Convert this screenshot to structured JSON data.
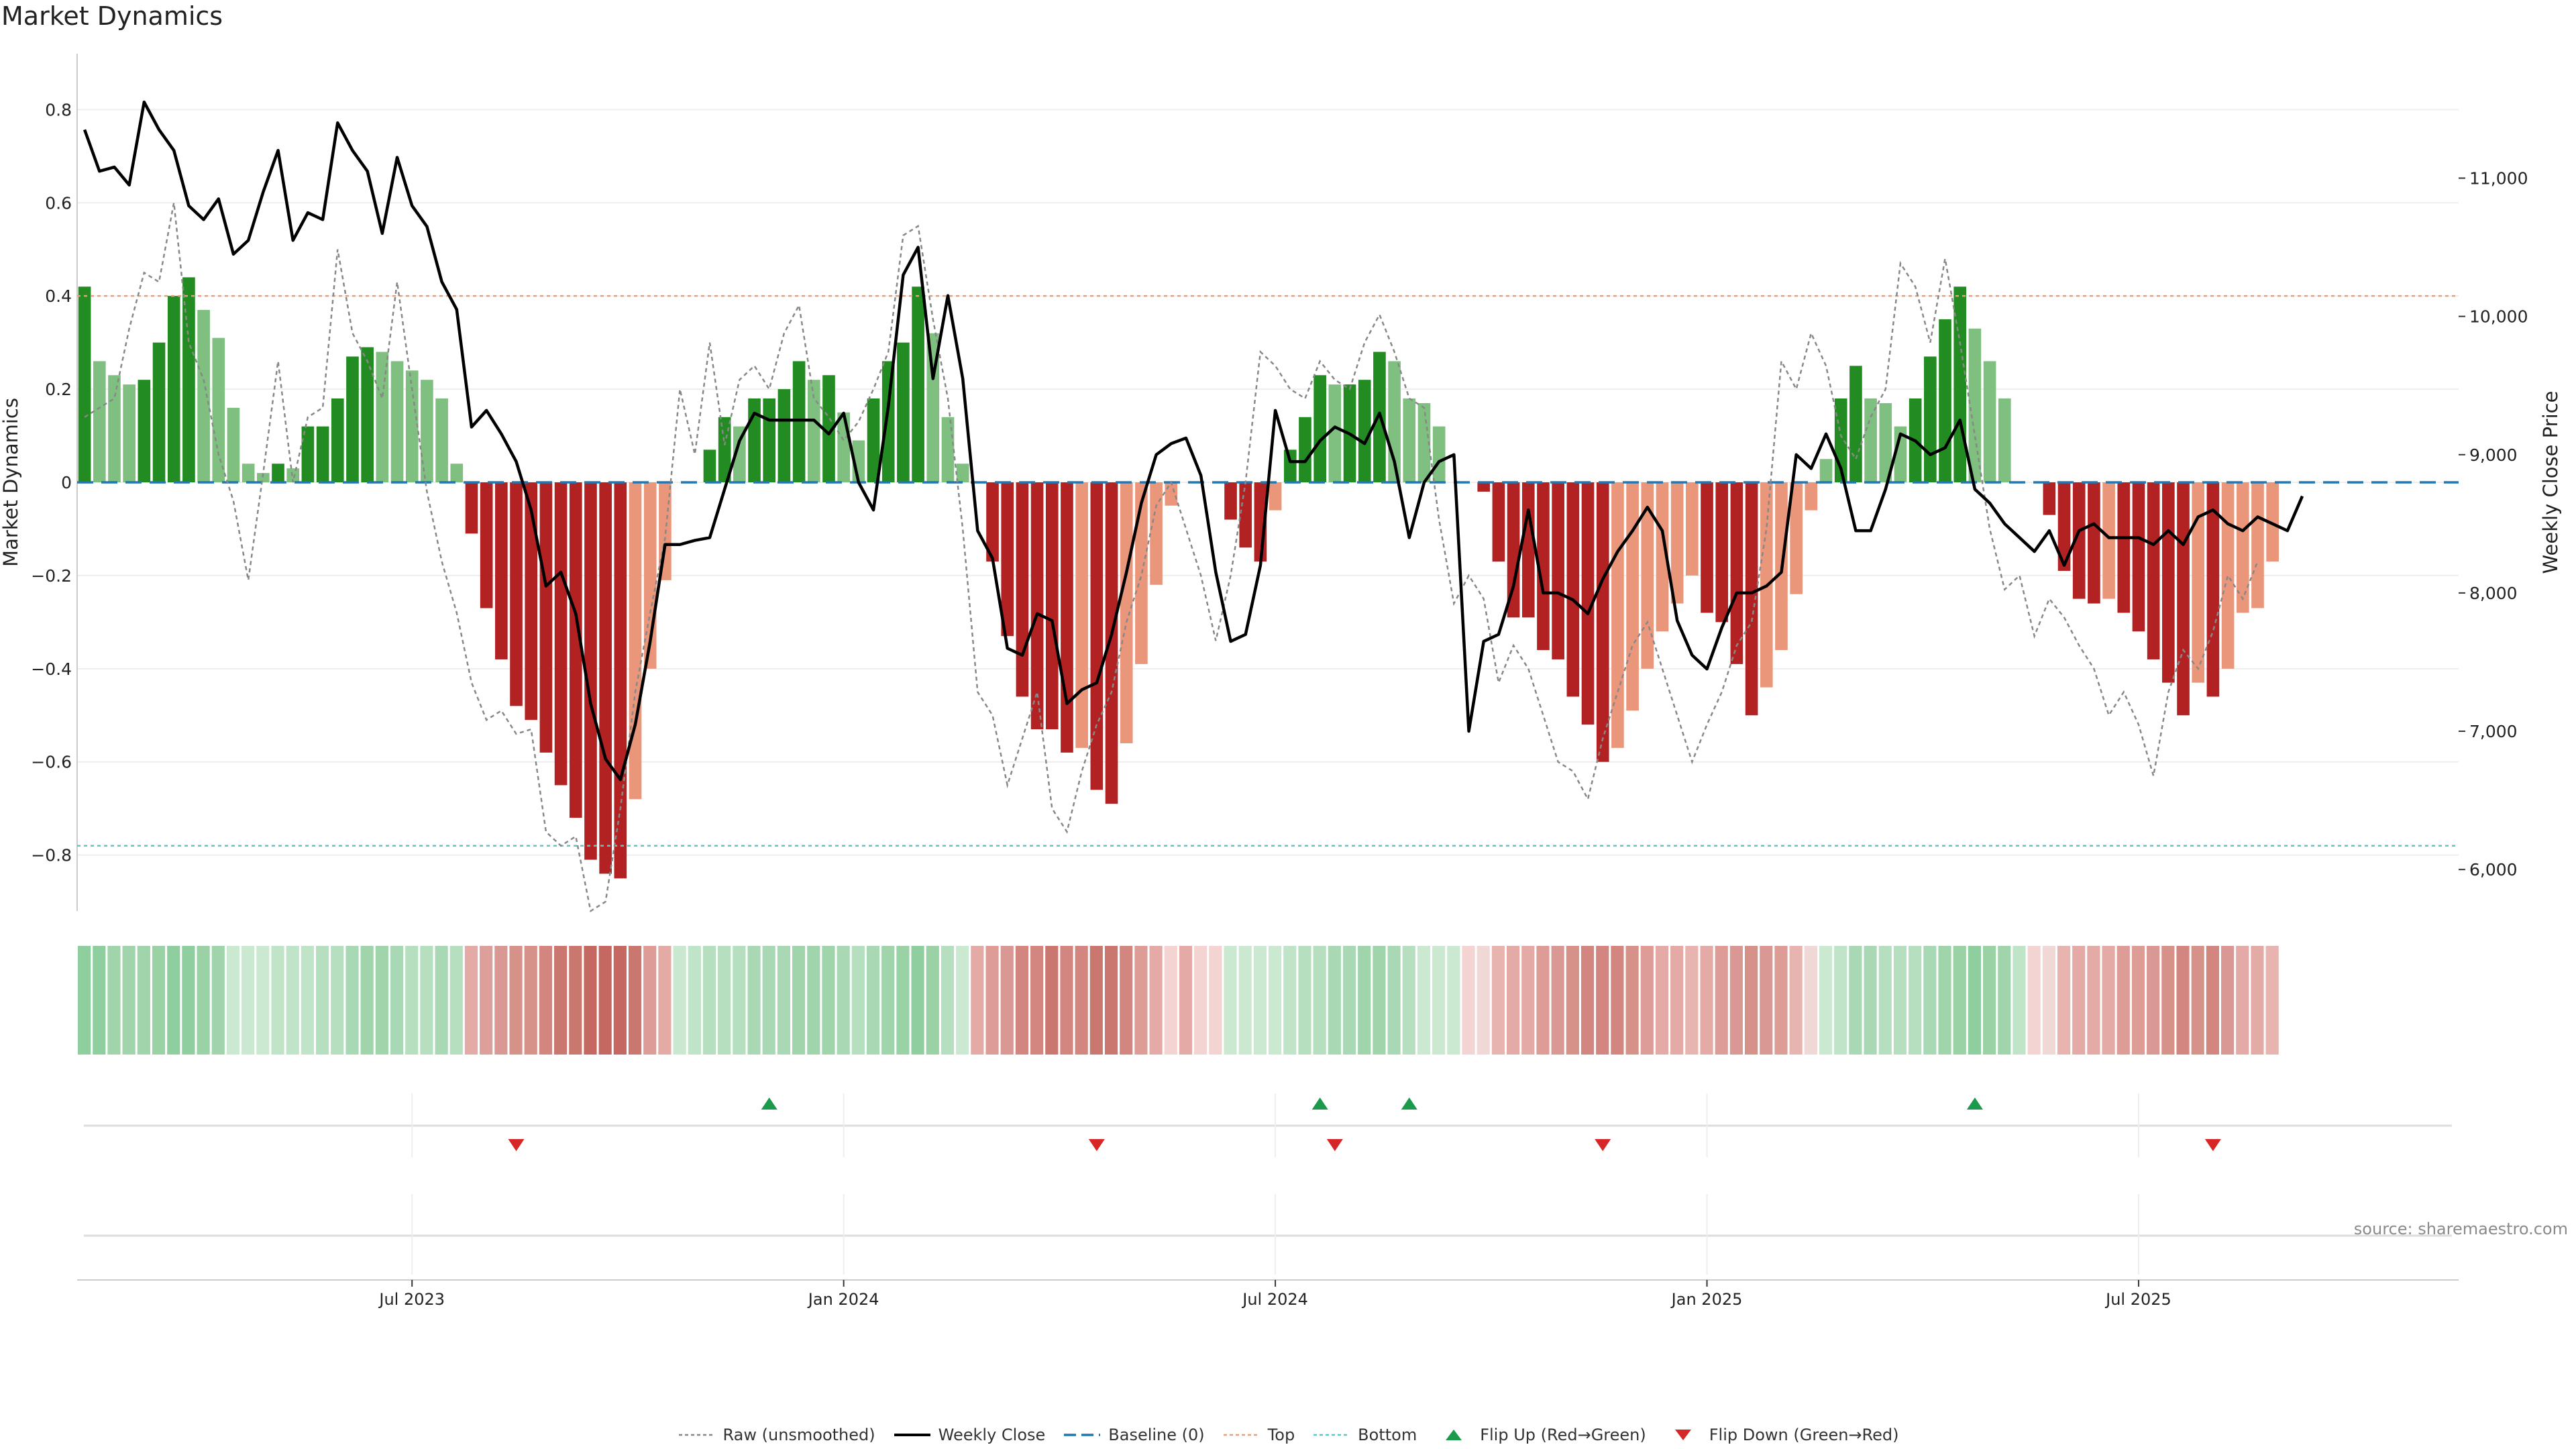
{
  "title": "Market Dynamics",
  "source": "source: sharemaestro.com",
  "colors": {
    "bar_pos_strong": "#228b22",
    "bar_pos_weak": "#7fbf7f",
    "bar_neg_strong": "#b22222",
    "bar_neg_weak": "#e9967a",
    "raw_line": "#888888",
    "close_line": "#000000",
    "baseline": "#1f77b4",
    "top_line": "#e8a07a",
    "bottom_line": "#5bc8c8",
    "flip_up": "#1a9a4a",
    "flip_down": "#d62728",
    "grid": "#eeeeee"
  },
  "legend": [
    {
      "label": "Raw (unsmoothed)",
      "kind": "raw"
    },
    {
      "label": "Weekly Close",
      "kind": "close"
    },
    {
      "label": "Baseline (0)",
      "kind": "baseline"
    },
    {
      "label": "Top",
      "kind": "top"
    },
    {
      "label": "Bottom",
      "kind": "bottom"
    },
    {
      "label": "Flip Up (Red→Green)",
      "kind": "up"
    },
    {
      "label": "Flip Down (Green→Red)",
      "kind": "down"
    }
  ],
  "chart_data": {
    "type": "bar",
    "title": "Market Dynamics",
    "ylabel": "Market Dynamics",
    "y2label": "Weekly Close Price",
    "ylim": [
      -0.92,
      0.92
    ],
    "y_ticks": [
      -0.8,
      -0.6,
      -0.4,
      -0.2,
      0,
      0.2,
      0.4,
      0.6,
      0.8
    ],
    "y_tick_labels": [
      "−0.8",
      "−0.6",
      "−0.4",
      "−0.2",
      "0",
      "0.2",
      "0.4",
      "0.6",
      "0.8"
    ],
    "y2lim": [
      5700,
      11900
    ],
    "y2_ticks": [
      6000,
      7000,
      8000,
      9000,
      10000,
      11000
    ],
    "y2_tick_labels": [
      "6,000",
      "7,000",
      "8,000",
      "9,000",
      "10,000",
      "11,000"
    ],
    "x_tick_weeks": [
      22,
      51,
      80,
      109,
      138
    ],
    "x_tick_labels": [
      "Jul 2023",
      "Jan 2024",
      "Jul 2024",
      "Jan 2025",
      "Jul 2025"
    ],
    "top_threshold": 0.4,
    "bottom_threshold": -0.78,
    "baseline": 0,
    "weeks": 160,
    "series": [
      {
        "name": "Market Dynamics",
        "values": [
          0.42,
          0.26,
          0.23,
          0.21,
          0.22,
          0.3,
          0.4,
          0.44,
          0.37,
          0.31,
          0.16,
          0.04,
          0.02,
          0.04,
          0.03,
          0.12,
          0.12,
          0.18,
          0.27,
          0.29,
          0.28,
          0.26,
          0.24,
          0.22,
          0.18,
          0.04,
          -0.11,
          -0.27,
          -0.38,
          -0.48,
          -0.51,
          -0.58,
          -0.65,
          -0.72,
          -0.81,
          -0.84,
          -0.85,
          -0.68,
          -0.4,
          -0.21,
          0,
          0,
          0.07,
          0.14,
          0.12,
          0.18,
          0.18,
          0.2,
          0.26,
          0.22,
          0.23,
          0.15,
          0.09,
          0.18,
          0.26,
          0.3,
          0.42,
          0.32,
          0.14,
          0.04,
          0,
          -0.17,
          -0.33,
          -0.46,
          -0.53,
          -0.53,
          -0.58,
          -0.57,
          -0.66,
          -0.69,
          -0.56,
          -0.39,
          -0.22,
          -0.05,
          0,
          0,
          0,
          -0.08,
          -0.14,
          -0.17,
          -0.06,
          0.07,
          0.14,
          0.23,
          0.21,
          0.21,
          0.22,
          0.28,
          0.26,
          0.18,
          0.17,
          0.12,
          0,
          0,
          -0.02,
          -0.17,
          -0.29,
          -0.29,
          -0.36,
          -0.38,
          -0.46,
          -0.52,
          -0.6,
          -0.57,
          -0.49,
          -0.4,
          -0.32,
          -0.26,
          -0.2,
          -0.28,
          -0.3,
          -0.39,
          -0.5,
          -0.44,
          -0.36,
          -0.24,
          -0.06,
          0.05,
          0.18,
          0.25,
          0.18,
          0.17,
          0.12,
          0.18,
          0.27,
          0.35,
          0.42,
          0.33,
          0.26,
          0.18,
          0,
          0,
          -0.07,
          -0.19,
          -0.25,
          -0.26,
          -0.25,
          -0.28,
          -0.32,
          -0.38,
          -0.43,
          -0.5,
          -0.43,
          -0.46,
          -0.4,
          -0.28,
          -0.27,
          -0.17
        ]
      },
      {
        "name": "Raw (unsmoothed)",
        "values": [
          0.14,
          0.16,
          0.18,
          0.33,
          0.45,
          0.43,
          0.6,
          0.3,
          0.22,
          0.06,
          -0.04,
          -0.21,
          0.02,
          0.26,
          0.0,
          0.14,
          0.16,
          0.5,
          0.32,
          0.26,
          0.18,
          0.43,
          0.2,
          -0.02,
          -0.17,
          -0.28,
          -0.43,
          -0.51,
          -0.49,
          -0.54,
          -0.53,
          -0.75,
          -0.78,
          -0.76,
          -0.92,
          -0.9,
          -0.7,
          -0.45,
          -0.28,
          -0.12,
          0.2,
          0.06,
          0.3,
          0.08,
          0.22,
          0.25,
          0.2,
          0.32,
          0.38,
          0.18,
          0.14,
          0.09,
          0.13,
          0.2,
          0.28,
          0.53,
          0.55,
          0.35,
          0.18,
          -0.1,
          -0.45,
          -0.5,
          -0.65,
          -0.55,
          -0.45,
          -0.7,
          -0.75,
          -0.62,
          -0.52,
          -0.45,
          -0.3,
          -0.2,
          -0.05,
          0.0,
          -0.1,
          -0.2,
          -0.34,
          -0.2,
          0.0,
          0.28,
          0.25,
          0.2,
          0.18,
          0.26,
          0.22,
          0.2,
          0.3,
          0.36,
          0.28,
          0.18,
          0.16,
          -0.08,
          -0.26,
          -0.2,
          -0.25,
          -0.43,
          -0.35,
          -0.4,
          -0.5,
          -0.6,
          -0.62,
          -0.68,
          -0.55,
          -0.45,
          -0.35,
          -0.3,
          -0.4,
          -0.5,
          -0.6,
          -0.52,
          -0.45,
          -0.35,
          -0.3,
          -0.1,
          0.26,
          0.2,
          0.32,
          0.25,
          0.1,
          0.05,
          0.14,
          0.2,
          0.47,
          0.42,
          0.3,
          0.48,
          0.3,
          0.1,
          -0.1,
          -0.23,
          -0.2,
          -0.33,
          -0.25,
          -0.29,
          -0.35,
          -0.4,
          -0.5,
          -0.45,
          -0.52,
          -0.63,
          -0.45,
          -0.36,
          -0.4,
          -0.32,
          -0.2,
          -0.25,
          -0.17
        ]
      },
      {
        "name": "Weekly Close",
        "values": [
          11350,
          11050,
          11080,
          10950,
          11550,
          11350,
          11200,
          10800,
          10700,
          10850,
          10450,
          10550,
          10900,
          11200,
          10550,
          10750,
          10700,
          11400,
          11200,
          11050,
          10600,
          11150,
          10800,
          10650,
          10250,
          10050,
          9200,
          9320,
          9150,
          8950,
          8600,
          8050,
          8150,
          7850,
          7200,
          6800,
          6650,
          7050,
          7650,
          8350,
          8350,
          8380,
          8400,
          8750,
          9100,
          9300,
          9250,
          9250,
          9250,
          9250,
          9150,
          9300,
          8800,
          8600,
          9350,
          10300,
          10500,
          9550,
          10150,
          9550,
          8450,
          8250,
          7600,
          7550,
          7850,
          7800,
          7200,
          7300,
          7350,
          7700,
          8150,
          8650,
          9000,
          9080,
          9120,
          8850,
          8150,
          7650,
          7700,
          8200,
          9320,
          8950,
          8950,
          9100,
          9200,
          9150,
          9080,
          9300,
          8950,
          8400,
          8800,
          8950,
          9000,
          7000,
          7650,
          7700,
          8050,
          8600,
          8000,
          8000,
          7950,
          7850,
          8100,
          8300,
          8450,
          8620,
          8450,
          7800,
          7550,
          7450,
          7750,
          8000,
          8000,
          8050,
          8150,
          9000,
          8900,
          9150,
          8900,
          8450,
          8450,
          8750,
          9150,
          9100,
          9000,
          9050,
          9250,
          8750,
          8650,
          8500,
          8400,
          8300,
          8450,
          8200,
          8450,
          8500,
          8400,
          8400,
          8400,
          8350,
          8450,
          8350,
          8550,
          8600,
          8500,
          8450,
          8550,
          8500,
          8450,
          8700
        ]
      }
    ],
    "strip_colors": [
      "#8fcf9f",
      "#8fcf9f",
      "#a0d4ab",
      "#a0d4ab",
      "#a0d4ab",
      "#9ad2a6",
      "#8fcf9f",
      "#8fcf9f",
      "#9ad2a6",
      "#a0d4ab",
      "#cbe9d1",
      "#cbe9d1",
      "#cbe9d1",
      "#bfe4c7",
      "#bfe4c7",
      "#bfe4c7",
      "#b5dfbf",
      "#b5dfbf",
      "#a9d9b4",
      "#a0d4ab",
      "#a0d4ab",
      "#a9d9b4",
      "#b5dfbf",
      "#b5dfbf",
      "#a9d9b4",
      "#b5dfbf",
      "#e3aaa6",
      "#dc9f9a",
      "#d99893",
      "#d69189",
      "#d69189",
      "#d2867f",
      "#ca7770",
      "#ca7770",
      "#c46861",
      "#c46861",
      "#c46861",
      "#ca7770",
      "#de9c96",
      "#e3aaa6",
      "#c9e8cf",
      "#bfe4c7",
      "#b5dfbf",
      "#b5dfbf",
      "#b5dfbf",
      "#a9d9b4",
      "#a9d9b4",
      "#a9d9b4",
      "#a0d4ab",
      "#a0d4ab",
      "#a0d4ab",
      "#a9d9b4",
      "#b5dfbf",
      "#a9d9b4",
      "#a0d4ab",
      "#9ad2a6",
      "#8fcf9f",
      "#9ad2a6",
      "#b5dfbf",
      "#cbe9d1",
      "#e3aaa6",
      "#de9c96",
      "#d99893",
      "#d2867f",
      "#d2867f",
      "#ca7770",
      "#d2867f",
      "#d2867f",
      "#ca7770",
      "#ca7770",
      "#d2867f",
      "#de9c96",
      "#e3aaa6",
      "#f3d4d2",
      "#e3aaa6",
      "#f3d4d2",
      "#f3d4d2",
      "#cbe9d1",
      "#cbe9d1",
      "#cbe9d1",
      "#cbe9d1",
      "#bfe4c7",
      "#b5dfbf",
      "#b5dfbf",
      "#a9d9b4",
      "#a9d9b4",
      "#a0d4ab",
      "#a0d4ab",
      "#a9d9b4",
      "#b5dfbf",
      "#cbe9d1",
      "#cbe9d1",
      "#cbe9d1",
      "#f3d4d2",
      "#f0d8d7",
      "#e8b4b0",
      "#e3aaa6",
      "#e3aaa6",
      "#de9c96",
      "#d99893",
      "#d69189",
      "#d2867f",
      "#d2867f",
      "#d2867f",
      "#d69189",
      "#de9c96",
      "#e3aaa6",
      "#e3aaa6",
      "#e8b4b0",
      "#e3aaa6",
      "#de9c96",
      "#d99893",
      "#d69189",
      "#d99893",
      "#de9c96",
      "#e8b4b0",
      "#f0d8d7",
      "#cbe9d1",
      "#bfe4c7",
      "#a9d9b4",
      "#a9d9b4",
      "#b5dfbf",
      "#b5dfbf",
      "#b5dfbf",
      "#a9d9b4",
      "#a0d4ab",
      "#9ad2a6",
      "#8fcf9f",
      "#9ad2a6",
      "#a0d4ab",
      "#bfe4c7",
      "#f3d4d2",
      "#f0d8d7",
      "#e8b4b0",
      "#e3aaa6",
      "#e3aaa6",
      "#e3aaa6",
      "#de9c96",
      "#de9c96",
      "#d99893",
      "#d69189",
      "#d2867f",
      "#d69189",
      "#d2867f",
      "#d99893",
      "#e3aaa6",
      "#e3aaa6",
      "#e8b4b0"
    ],
    "flip_up_weeks": [
      46,
      83,
      89,
      127
    ],
    "flip_down_weeks": [
      29,
      68,
      84,
      102,
      143
    ]
  }
}
